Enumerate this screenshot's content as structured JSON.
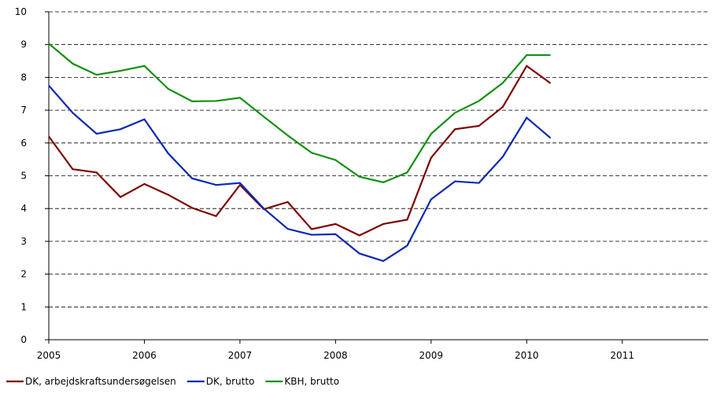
{
  "chart_data": {
    "type": "line",
    "x": [
      2005,
      2005.25,
      2005.5,
      2005.75,
      2006,
      2006.25,
      2006.5,
      2006.75,
      2007,
      2007.25,
      2007.5,
      2007.75,
      2008,
      2008.25,
      2008.5,
      2008.75,
      2009,
      2009.25,
      2009.5,
      2009.75,
      2010,
      2010.25
    ],
    "series": [
      {
        "name": "DK, arbejdskraftsundersøgelsen",
        "color": "#7f0000",
        "values": [
          6.2,
          5.2,
          5.1,
          4.35,
          4.75,
          4.42,
          4.02,
          3.77,
          4.72,
          3.98,
          4.2,
          3.37,
          3.53,
          3.18,
          3.53,
          3.66,
          5.55,
          6.42,
          6.52,
          7.1,
          8.35,
          7.82
        ]
      },
      {
        "name": "DK, brutto",
        "color": "#0a28b4",
        "values": [
          7.75,
          6.92,
          6.28,
          6.42,
          6.72,
          5.68,
          4.92,
          4.72,
          4.78,
          4.0,
          3.38,
          3.2,
          3.22,
          2.63,
          2.4,
          2.87,
          4.28,
          4.83,
          4.78,
          5.58,
          6.77,
          6.15
        ]
      },
      {
        "name": "KBH, brutto",
        "color": "#119011",
        "values": [
          9.03,
          8.42,
          8.08,
          8.2,
          8.35,
          7.65,
          7.27,
          7.28,
          7.38,
          6.8,
          6.23,
          5.7,
          5.48,
          4.97,
          4.8,
          5.1,
          6.28,
          6.92,
          7.28,
          7.83,
          8.68,
          8.68
        ]
      }
    ],
    "xlim": [
      2005,
      2011.9
    ],
    "xticks": [
      2005,
      2006,
      2007,
      2008,
      2009,
      2010,
      2011
    ],
    "ylim": [
      0,
      10
    ],
    "yticks": [
      0,
      1,
      2,
      3,
      4,
      5,
      6,
      7,
      8,
      9,
      10
    ],
    "grid": true,
    "legend": "bottom"
  }
}
